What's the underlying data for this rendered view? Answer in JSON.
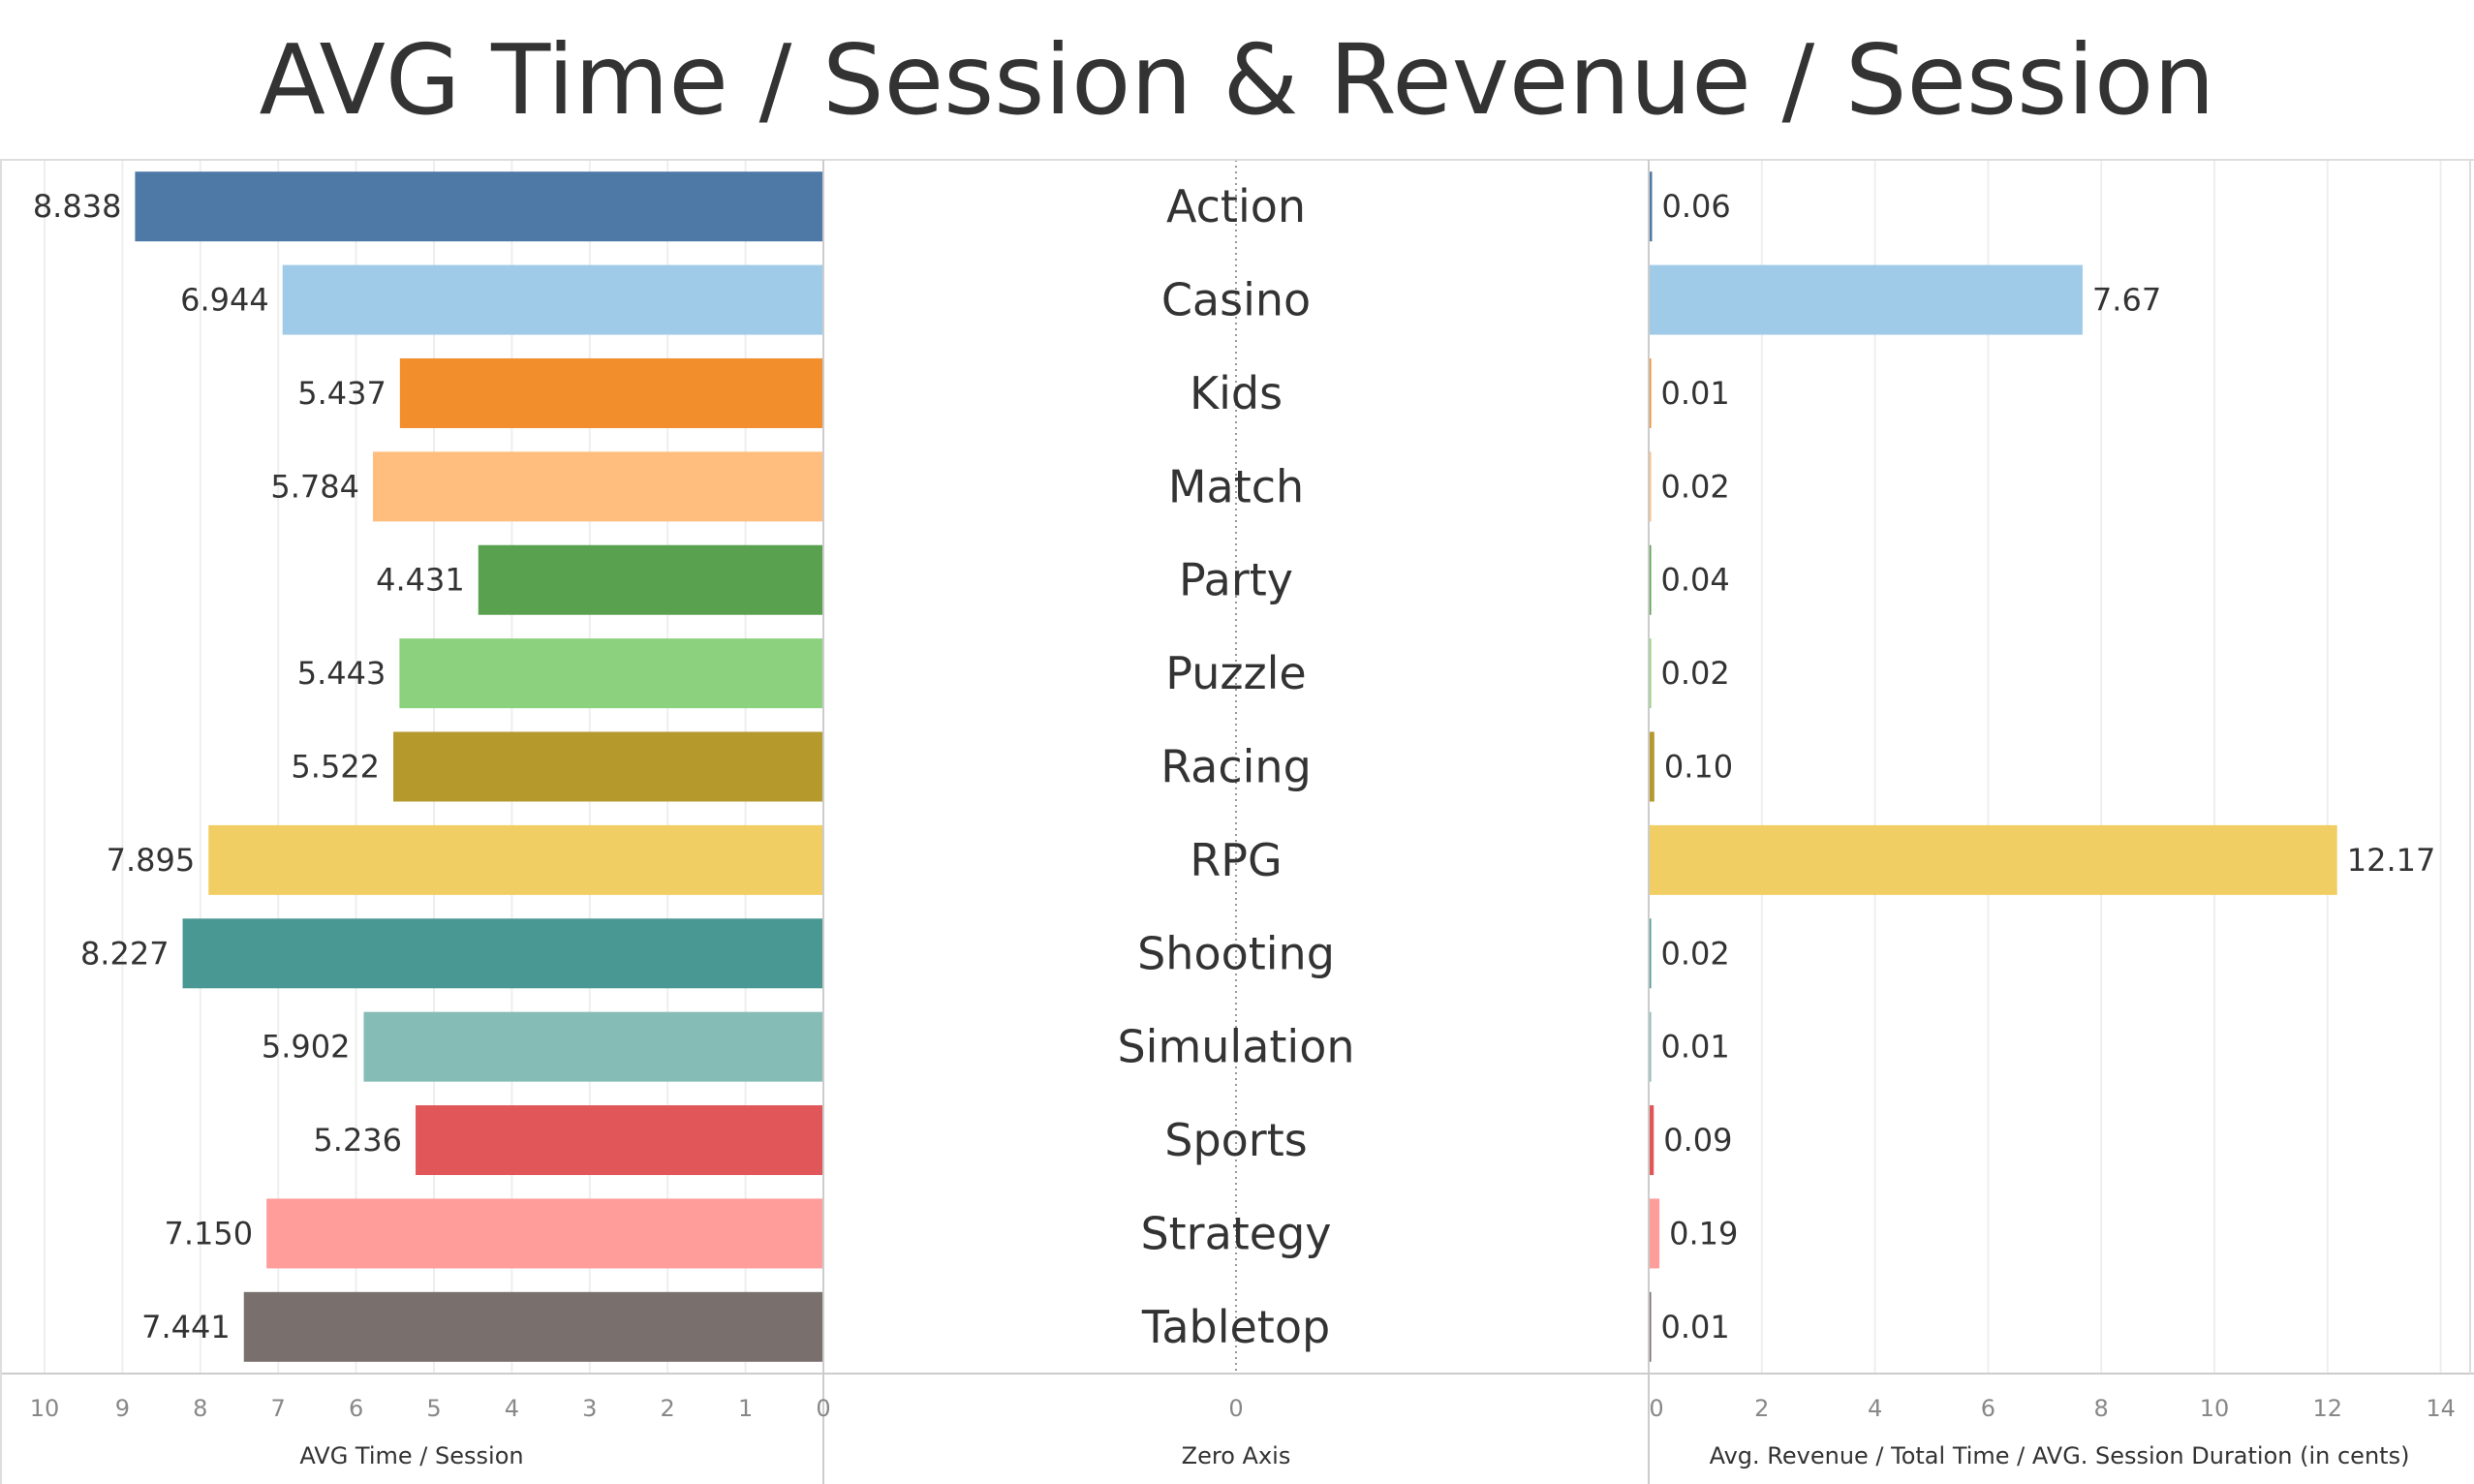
{
  "chart_data": {
    "type": "bar",
    "title": "AVG Time / Session & Revenue / Session",
    "categories": [
      "Action",
      "Casino",
      "Kids",
      "Match",
      "Party",
      "Puzzle",
      "Racing",
      "RPG",
      "Shooting",
      "Simulation",
      "Sports",
      "Strategy",
      "Tabletop"
    ],
    "colors": [
      "#4e79a7",
      "#a0cbe8",
      "#f28e2b",
      "#ffbe7d",
      "#59a14f",
      "#8cd17d",
      "#b6992d",
      "#f1ce63",
      "#499894",
      "#86bcb6",
      "#e15759",
      "#ff9d9a",
      "#79706e"
    ],
    "left_panel": {
      "series_name": "AVG Time / Session",
      "xlabel": "AVG Time / Session",
      "values": [
        8.838,
        6.944,
        5.437,
        5.784,
        4.431,
        5.443,
        5.522,
        7.895,
        8.227,
        5.902,
        5.236,
        7.15,
        7.441
      ],
      "value_labels": [
        "8.838",
        "6.944",
        "5.437",
        "5.784",
        "4.431",
        "5.443",
        "5.522",
        "7.895",
        "8.227",
        "5.902",
        "5.236",
        "7.150",
        "7.441"
      ],
      "xlim": [
        10,
        0
      ],
      "ticks": [
        10,
        9,
        8,
        7,
        6,
        5,
        4,
        3,
        2,
        1,
        0
      ],
      "reversed": true
    },
    "middle_panel": {
      "xlabel": "Zero Axis",
      "ticks": [
        0
      ]
    },
    "right_panel": {
      "series_name": "Avg. Revenue / Total Time / AVG. Session Duration (in cents)",
      "xlabel": "Avg. Revenue / Total Time / AVG. Session Duration (in cents)",
      "values": [
        0.06,
        7.67,
        0.01,
        0.02,
        0.04,
        0.02,
        0.1,
        12.17,
        0.02,
        0.01,
        0.09,
        0.19,
        0.01
      ],
      "value_labels": [
        "0.06",
        "7.67",
        "0.01",
        "0.02",
        "0.04",
        "0.02",
        "0.10",
        "12.17",
        "0.02",
        "0.01",
        "0.09",
        "0.19",
        "0.01"
      ],
      "xlim": [
        0,
        14.5
      ],
      "ticks": [
        0,
        2,
        4,
        6,
        8,
        10,
        12,
        14
      ]
    },
    "grid": true,
    "legend": "none"
  }
}
